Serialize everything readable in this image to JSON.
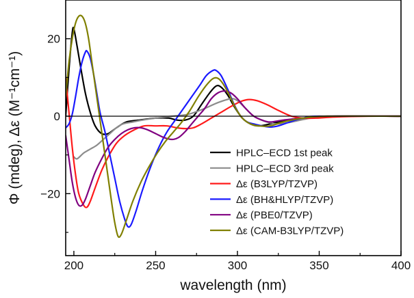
{
  "chart_data": {
    "type": "line",
    "xlabel": "wavelength (nm)",
    "ylabel": "Φ (mdeg), Δε (M⁻¹cm⁻¹)",
    "xlim": [
      195,
      400
    ],
    "ylim": [
      -36,
      30
    ],
    "x_ticks": [
      200,
      250,
      300,
      350,
      400
    ],
    "y_ticks": [
      -20,
      0,
      20
    ],
    "zero_line": true,
    "legend_position": "lower-right",
    "series": [
      {
        "name": "HPLC–ECD 1st peak",
        "color": "#000000",
        "points": [
          [
            195,
            0
          ],
          [
            197,
            12
          ],
          [
            199,
            21.5
          ],
          [
            200,
            22.5
          ],
          [
            202,
            18
          ],
          [
            204,
            13
          ],
          [
            207,
            6
          ],
          [
            210,
            1
          ],
          [
            213,
            -2.5
          ],
          [
            217,
            -4.5
          ],
          [
            221,
            -4.5
          ],
          [
            226,
            -3
          ],
          [
            232,
            -1.5
          ],
          [
            240,
            -1
          ],
          [
            250,
            -0.5
          ],
          [
            258,
            -0.5
          ],
          [
            263,
            -1
          ],
          [
            268,
            -1
          ],
          [
            273,
            0
          ],
          [
            278,
            3
          ],
          [
            283,
            6
          ],
          [
            287,
            7.8
          ],
          [
            290,
            7.5
          ],
          [
            294,
            5.5
          ],
          [
            298,
            2.5
          ],
          [
            303,
            -0.5
          ],
          [
            308,
            -2
          ],
          [
            313,
            -2.5
          ],
          [
            320,
            -2
          ],
          [
            330,
            -1
          ],
          [
            340,
            -0.5
          ],
          [
            360,
            0
          ],
          [
            400,
            0
          ]
        ]
      },
      {
        "name": "HPLC–ECD 3rd peak",
        "color": "#8c8c8c",
        "points": [
          [
            200,
            -10.5
          ],
          [
            202,
            -11
          ],
          [
            206,
            -9.5
          ],
          [
            210,
            -8.5
          ],
          [
            214,
            -7.5
          ],
          [
            218,
            -6
          ],
          [
            222,
            -4.5
          ],
          [
            226,
            -3
          ],
          [
            230,
            -2
          ],
          [
            236,
            -1.5
          ],
          [
            242,
            -1
          ],
          [
            250,
            -0.5
          ],
          [
            260,
            0
          ],
          [
            270,
            0.5
          ],
          [
            280,
            2
          ],
          [
            288,
            3.5
          ],
          [
            296,
            4.5
          ],
          [
            300,
            4
          ],
          [
            305,
            2
          ],
          [
            310,
            0
          ],
          [
            318,
            -1.5
          ],
          [
            325,
            -2
          ],
          [
            333,
            -1.5
          ],
          [
            345,
            -0.5
          ],
          [
            360,
            0
          ],
          [
            400,
            0
          ]
        ]
      },
      {
        "name": "Δε (B3LYP/TZVP)",
        "color": "#ff1a1a",
        "points": [
          [
            195,
            10
          ],
          [
            197,
            1
          ],
          [
            199,
            -8
          ],
          [
            201,
            -15
          ],
          [
            203,
            -20
          ],
          [
            206,
            -23
          ],
          [
            208,
            -23.5
          ],
          [
            210,
            -22
          ],
          [
            213,
            -18.5
          ],
          [
            217,
            -14
          ],
          [
            221,
            -10.5
          ],
          [
            226,
            -7
          ],
          [
            231,
            -5
          ],
          [
            237,
            -3.5
          ],
          [
            243,
            -2.5
          ],
          [
            250,
            -2.5
          ],
          [
            257,
            -2.5
          ],
          [
            263,
            -3
          ],
          [
            268,
            -3.2
          ],
          [
            273,
            -3
          ],
          [
            278,
            -2
          ],
          [
            284,
            -0.5
          ],
          [
            290,
            1
          ],
          [
            296,
            2.5
          ],
          [
            302,
            3.8
          ],
          [
            307,
            4.3
          ],
          [
            312,
            4
          ],
          [
            318,
            3
          ],
          [
            325,
            1.5
          ],
          [
            333,
            0
          ],
          [
            340,
            -0.5
          ],
          [
            348,
            -0.5
          ],
          [
            360,
            -0.2
          ],
          [
            380,
            0
          ],
          [
            400,
            0
          ]
        ]
      },
      {
        "name": "Δε (BH&HLYP/TZVP)",
        "color": "#1a1aff",
        "points": [
          [
            195,
            -3
          ],
          [
            197,
            -2
          ],
          [
            199,
            0.5
          ],
          [
            201,
            5
          ],
          [
            203,
            10
          ],
          [
            205,
            14
          ],
          [
            207,
            16.5
          ],
          [
            208,
            16.8
          ],
          [
            210,
            15
          ],
          [
            212,
            11
          ],
          [
            214,
            6
          ],
          [
            216,
            1
          ],
          [
            219,
            -4
          ],
          [
            222,
            -10
          ],
          [
            225,
            -16
          ],
          [
            228,
            -22
          ],
          [
            231,
            -26.5
          ],
          [
            233,
            -28.5
          ],
          [
            235,
            -28
          ],
          [
            238,
            -24.5
          ],
          [
            242,
            -19
          ],
          [
            247,
            -13
          ],
          [
            252,
            -8
          ],
          [
            257,
            -4
          ],
          [
            262,
            -1
          ],
          [
            267,
            2
          ],
          [
            272,
            5
          ],
          [
            277,
            8
          ],
          [
            281,
            10.5
          ],
          [
            285,
            11.8
          ],
          [
            287,
            11.8
          ],
          [
            290,
            10.5
          ],
          [
            294,
            7
          ],
          [
            298,
            3
          ],
          [
            302,
            0
          ],
          [
            306,
            -1.5
          ],
          [
            310,
            -2
          ],
          [
            315,
            -2.5
          ],
          [
            320,
            -2.8
          ],
          [
            325,
            -2.5
          ],
          [
            332,
            -1.5
          ],
          [
            340,
            -0.5
          ],
          [
            350,
            0
          ],
          [
            400,
            0
          ]
        ]
      },
      {
        "name": "Δε (PBE0/TZVP)",
        "color": "#800080",
        "points": [
          [
            195,
            -5
          ],
          [
            197,
            -11
          ],
          [
            199,
            -17
          ],
          [
            201,
            -21
          ],
          [
            203,
            -23
          ],
          [
            205,
            -23
          ],
          [
            207,
            -21.5
          ],
          [
            210,
            -18
          ],
          [
            213,
            -14.5
          ],
          [
            217,
            -11
          ],
          [
            221,
            -8
          ],
          [
            225,
            -6
          ],
          [
            229,
            -4.5
          ],
          [
            233,
            -3.5
          ],
          [
            237,
            -3
          ],
          [
            241,
            -3
          ],
          [
            245,
            -3.5
          ],
          [
            250,
            -4.5
          ],
          [
            255,
            -5.5
          ],
          [
            260,
            -6
          ],
          [
            264,
            -5.5
          ],
          [
            268,
            -4
          ],
          [
            272,
            -2
          ],
          [
            276,
            0
          ],
          [
            280,
            2
          ],
          [
            284,
            4.5
          ],
          [
            288,
            6
          ],
          [
            292,
            6.5
          ],
          [
            296,
            6
          ],
          [
            300,
            4.5
          ],
          [
            305,
            2
          ],
          [
            310,
            0
          ],
          [
            315,
            -1
          ],
          [
            320,
            -1.5
          ],
          [
            328,
            -1
          ],
          [
            340,
            -0.5
          ],
          [
            355,
            0
          ],
          [
            400,
            0
          ]
        ]
      },
      {
        "name": "Δε (CAM-B3LYP/TZVP)",
        "color": "#808000",
        "points": [
          [
            195,
            5
          ],
          [
            197,
            14
          ],
          [
            199,
            20
          ],
          [
            201,
            24
          ],
          [
            203,
            25.8
          ],
          [
            205,
            25.8
          ],
          [
            207,
            24
          ],
          [
            209,
            20
          ],
          [
            211,
            14
          ],
          [
            213,
            8
          ],
          [
            215,
            2
          ],
          [
            217,
            -4
          ],
          [
            219,
            -10
          ],
          [
            221,
            -16
          ],
          [
            223,
            -22
          ],
          [
            225,
            -27.5
          ],
          [
            227,
            -31
          ],
          [
            229,
            -30.5
          ],
          [
            232,
            -27
          ],
          [
            236,
            -22
          ],
          [
            241,
            -17
          ],
          [
            246,
            -13
          ],
          [
            251,
            -9.5
          ],
          [
            256,
            -6.5
          ],
          [
            261,
            -4
          ],
          [
            266,
            -1.5
          ],
          [
            271,
            1.5
          ],
          [
            276,
            5
          ],
          [
            281,
            8
          ],
          [
            285,
            9.7
          ],
          [
            288,
            9.8
          ],
          [
            291,
            8.5
          ],
          [
            295,
            5.5
          ],
          [
            299,
            2
          ],
          [
            303,
            -0.5
          ],
          [
            308,
            -2
          ],
          [
            313,
            -2.5
          ],
          [
            320,
            -2.5
          ],
          [
            328,
            -1.5
          ],
          [
            340,
            -0.5
          ],
          [
            355,
            0
          ],
          [
            400,
            0
          ]
        ]
      }
    ]
  }
}
